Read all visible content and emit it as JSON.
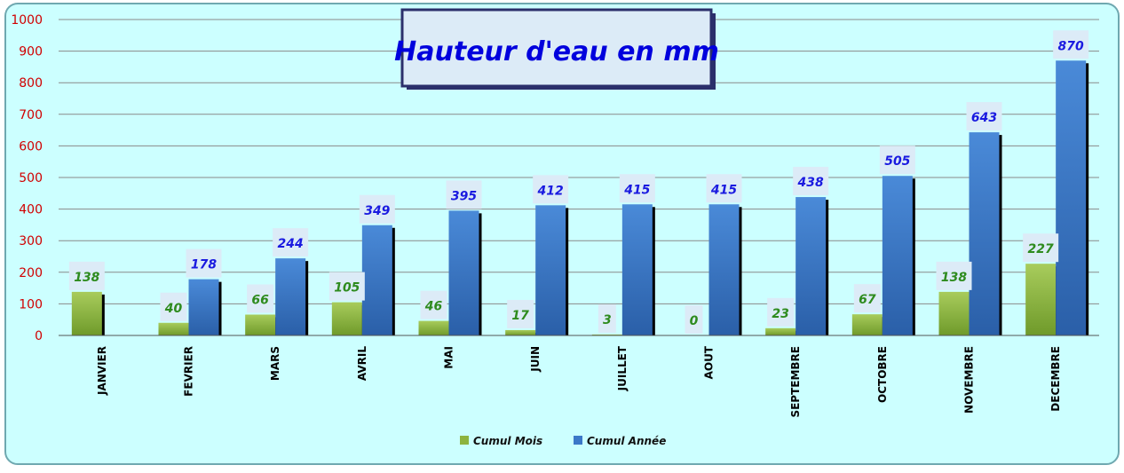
{
  "chart_data": {
    "type": "bar",
    "title": "Hauteur d'eau en mm",
    "xlabel": "",
    "ylabel": "",
    "ylim": [
      0,
      1000
    ],
    "yticks": [
      0,
      100,
      200,
      300,
      400,
      500,
      600,
      700,
      800,
      900,
      1000
    ],
    "grid": true,
    "legend_position": "bottom",
    "categories": [
      "JANVIER",
      "FEVRIER",
      "MARS",
      "AVRIL",
      "MAI",
      "JUIN",
      "JUILLET",
      "AOUT",
      "SEPTEMBRE",
      "OCTOBRE",
      "NOVEMBRE",
      "DECEMBRE"
    ],
    "series": [
      {
        "name": "Cumul Mois",
        "values": [
          138,
          40,
          66,
          105,
          46,
          17,
          3,
          0,
          23,
          67,
          138,
          227
        ],
        "labels": [
          "138",
          "40",
          "66",
          "105",
          "46",
          "17",
          "3",
          "0",
          "23",
          "67",
          "138",
          "227"
        ],
        "color": "#8DB33F",
        "label_color": "#2E8B1E"
      },
      {
        "name": "Cumul Année",
        "values": [
          null,
          178,
          244,
          349,
          395,
          412,
          415,
          415,
          438,
          505,
          643,
          870
        ],
        "labels": [
          "",
          "178",
          "244",
          "349",
          "395",
          "412",
          "415",
          "415",
          "438",
          "505",
          "643",
          "870"
        ],
        "color": "#3B78C8",
        "label_color": "#1A1AE0"
      }
    ],
    "colors": {
      "background": "#CCFFFF",
      "axis_text": "#D00000",
      "title_text": "#0000DD",
      "title_box": "#DCEBF7"
    }
  }
}
